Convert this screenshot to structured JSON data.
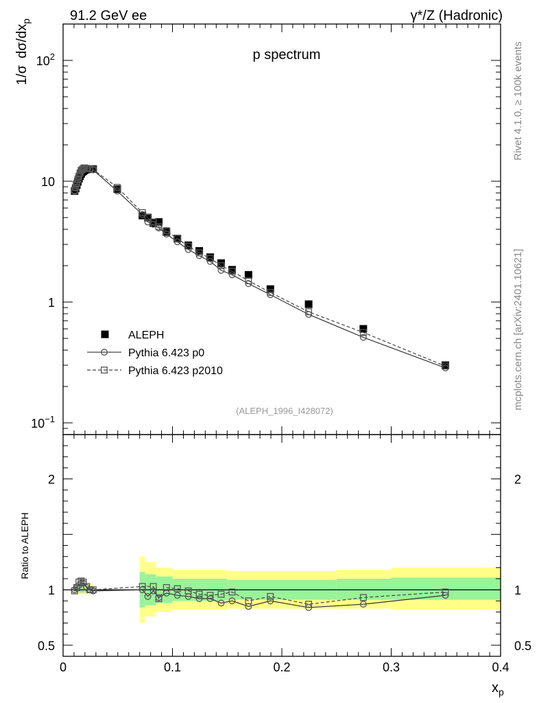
{
  "header": {
    "left": "91.2 GeV ee",
    "right": "γ*/Z (Hadronic)"
  },
  "side_labels": {
    "rivet": "Rivet 4.1.0, ≥ 100k events",
    "mcplots": "mcplots.cern.ch [arXiv:2401.10621]"
  },
  "chart_data": [
    {
      "type": "scatter",
      "panel": "main",
      "title": "p spectrum",
      "ylabel_parts": [
        "1/σ",
        "dσ/dx",
        "p"
      ],
      "xlabel_parts": [
        "x",
        "p"
      ],
      "yscale": "log",
      "ylim": [
        0.08,
        200
      ],
      "xlim": [
        0,
        0.4
      ],
      "watermark": "(ALEPH_1996_I428072)",
      "y_ticks": [
        {
          "value": 0.1,
          "label": "10",
          "exp": "−1"
        },
        {
          "value": 1,
          "label": "1",
          "exp": ""
        },
        {
          "value": 10,
          "label": "10",
          "exp": ""
        },
        {
          "value": 100,
          "label": "10",
          "exp": "2"
        }
      ],
      "legend": [
        "ALEPH",
        "Pythia 6.423 p0",
        "Pythia 6.423 p2010"
      ],
      "legend_position": "middle-left",
      "series": [
        {
          "name": "ALEPH",
          "style": "filled-square",
          "x": [
            0.0105,
            0.0115,
            0.0125,
            0.0135,
            0.0145,
            0.0155,
            0.0165,
            0.0175,
            0.0185,
            0.0195,
            0.0215,
            0.0245,
            0.0275,
            0.0495,
            0.0725,
            0.0775,
            0.0825,
            0.0875,
            0.0945,
            0.1045,
            0.1145,
            0.1245,
            0.1345,
            0.1445,
            0.1545,
            0.1695,
            0.1895,
            0.2245,
            0.2745,
            0.3495
          ],
          "y": [
            8.3,
            8.7,
            9.3,
            9.9,
            10.5,
            11.0,
            11.5,
            11.9,
            12.1,
            12.3,
            12.5,
            12.6,
            12.6,
            8.6,
            5.2,
            5.0,
            4.5,
            4.6,
            3.8,
            3.35,
            2.95,
            2.65,
            2.35,
            2.1,
            1.85,
            1.68,
            1.28,
            0.96,
            0.6,
            0.3
          ]
        },
        {
          "name": "Pythia 6.423 p0",
          "style": "open-circle-solid",
          "x": [
            0.0105,
            0.0115,
            0.0125,
            0.0135,
            0.0145,
            0.0155,
            0.0165,
            0.0175,
            0.0185,
            0.0195,
            0.0215,
            0.0245,
            0.0275,
            0.0495,
            0.0725,
            0.0775,
            0.0825,
            0.0875,
            0.0945,
            0.1045,
            0.1145,
            0.1245,
            0.1345,
            0.1445,
            0.1545,
            0.1695,
            0.1895,
            0.2245,
            0.2745,
            0.3495
          ],
          "y": [
            8.3,
            8.8,
            9.5,
            10.2,
            10.9,
            11.5,
            12.0,
            12.4,
            12.7,
            12.8,
            12.7,
            12.6,
            12.4,
            8.3,
            5.3,
            4.6,
            4.4,
            4.1,
            3.65,
            3.15,
            2.72,
            2.42,
            2.17,
            1.83,
            1.68,
            1.42,
            1.15,
            0.79,
            0.51,
            0.285
          ]
        },
        {
          "name": "Pythia 6.423 p2010",
          "style": "open-square-dashed",
          "x": [
            0.0105,
            0.0115,
            0.0125,
            0.0135,
            0.0145,
            0.0155,
            0.0165,
            0.0175,
            0.0185,
            0.0195,
            0.0215,
            0.0245,
            0.0275,
            0.0495,
            0.0725,
            0.0775,
            0.0825,
            0.0875,
            0.0945,
            0.1045,
            0.1145,
            0.1245,
            0.1345,
            0.1445,
            0.1545,
            0.1695,
            0.1895,
            0.2245,
            0.2745,
            0.3495
          ],
          "y": [
            8.4,
            8.9,
            9.6,
            10.3,
            11.0,
            11.7,
            12.3,
            12.5,
            12.8,
            12.9,
            12.8,
            12.7,
            12.5,
            8.9,
            5.5,
            5.0,
            4.6,
            4.2,
            3.9,
            3.35,
            2.9,
            2.55,
            2.3,
            2.0,
            1.8,
            1.5,
            1.2,
            0.83,
            0.56,
            0.295
          ]
        }
      ]
    },
    {
      "type": "line",
      "panel": "ratio",
      "ylabel": "Ratio to ALEPH",
      "ylim": [
        0.4,
        2.4
      ],
      "xlim": [
        0,
        0.4
      ],
      "y_ticks": [
        {
          "value": 0.5,
          "label": "0.5"
        },
        {
          "value": 1,
          "label": "1"
        },
        {
          "value": 2,
          "label": "2"
        }
      ],
      "x_ticks": [
        {
          "value": 0,
          "label": "0"
        },
        {
          "value": 0.1,
          "label": "0.1"
        },
        {
          "value": 0.2,
          "label": "0.2"
        },
        {
          "value": 0.3,
          "label": "0.3"
        },
        {
          "value": 0.4,
          "label": "0.4"
        }
      ],
      "bands": [
        {
          "x0": 0.01,
          "x1": 0.028,
          "yellow": [
            0.96,
            1.05
          ],
          "green": [
            0.975,
            1.03
          ]
        },
        {
          "x0": 0.07,
          "x1": 0.075,
          "yellow": [
            0.7,
            1.3
          ],
          "green": [
            0.84,
            1.16
          ]
        },
        {
          "x0": 0.075,
          "x1": 0.085,
          "yellow": [
            0.76,
            1.25
          ],
          "green": [
            0.86,
            1.14
          ]
        },
        {
          "x0": 0.085,
          "x1": 0.1,
          "yellow": [
            0.8,
            1.2
          ],
          "green": [
            0.88,
            1.12
          ]
        },
        {
          "x0": 0.1,
          "x1": 0.15,
          "yellow": [
            0.82,
            1.18
          ],
          "green": [
            0.9,
            1.1
          ]
        },
        {
          "x0": 0.15,
          "x1": 0.25,
          "yellow": [
            0.83,
            1.17
          ],
          "green": [
            0.91,
            1.09
          ]
        },
        {
          "x0": 0.25,
          "x1": 0.3,
          "yellow": [
            0.83,
            1.18
          ],
          "green": [
            0.91,
            1.1
          ]
        },
        {
          "x0": 0.3,
          "x1": 0.4,
          "yellow": [
            0.82,
            1.2
          ],
          "green": [
            0.91,
            1.11
          ]
        }
      ],
      "series": [
        {
          "name": "Pythia 6.423 p0 / ALEPH",
          "style": "open-circle-solid",
          "x": [
            0.0105,
            0.0125,
            0.0145,
            0.0165,
            0.0185,
            0.0215,
            0.0245,
            0.0275,
            0.0725,
            0.0775,
            0.0825,
            0.0875,
            0.0945,
            0.1045,
            0.1145,
            0.1245,
            0.1345,
            0.1445,
            0.1545,
            0.1695,
            0.1895,
            0.2245,
            0.2745,
            0.3495
          ],
          "y": [
            1.0,
            1.02,
            1.04,
            1.06,
            1.06,
            1.02,
            1.0,
            0.99,
            1.0,
            0.94,
            0.99,
            0.93,
            0.97,
            0.95,
            0.94,
            0.92,
            0.92,
            0.88,
            0.9,
            0.85,
            0.9,
            0.84,
            0.87,
            0.95
          ]
        },
        {
          "name": "Pythia 6.423 p2010 / ALEPH",
          "style": "open-square-dashed",
          "x": [
            0.0105,
            0.0125,
            0.0145,
            0.0165,
            0.0185,
            0.0215,
            0.0245,
            0.0275,
            0.0725,
            0.0825,
            0.0875,
            0.0945,
            0.1045,
            0.1145,
            0.1245,
            0.1345,
            0.1445,
            0.1545,
            0.1695,
            0.1895,
            0.2245,
            0.2745,
            0.3495
          ],
          "y": [
            0.99,
            1.02,
            1.07,
            1.08,
            1.07,
            1.03,
            1.0,
            1.0,
            1.03,
            1.03,
            0.92,
            1.02,
            1.01,
            0.99,
            0.96,
            0.95,
            0.96,
            0.98,
            0.9,
            0.94,
            0.87,
            0.93,
            0.98
          ]
        }
      ]
    }
  ]
}
